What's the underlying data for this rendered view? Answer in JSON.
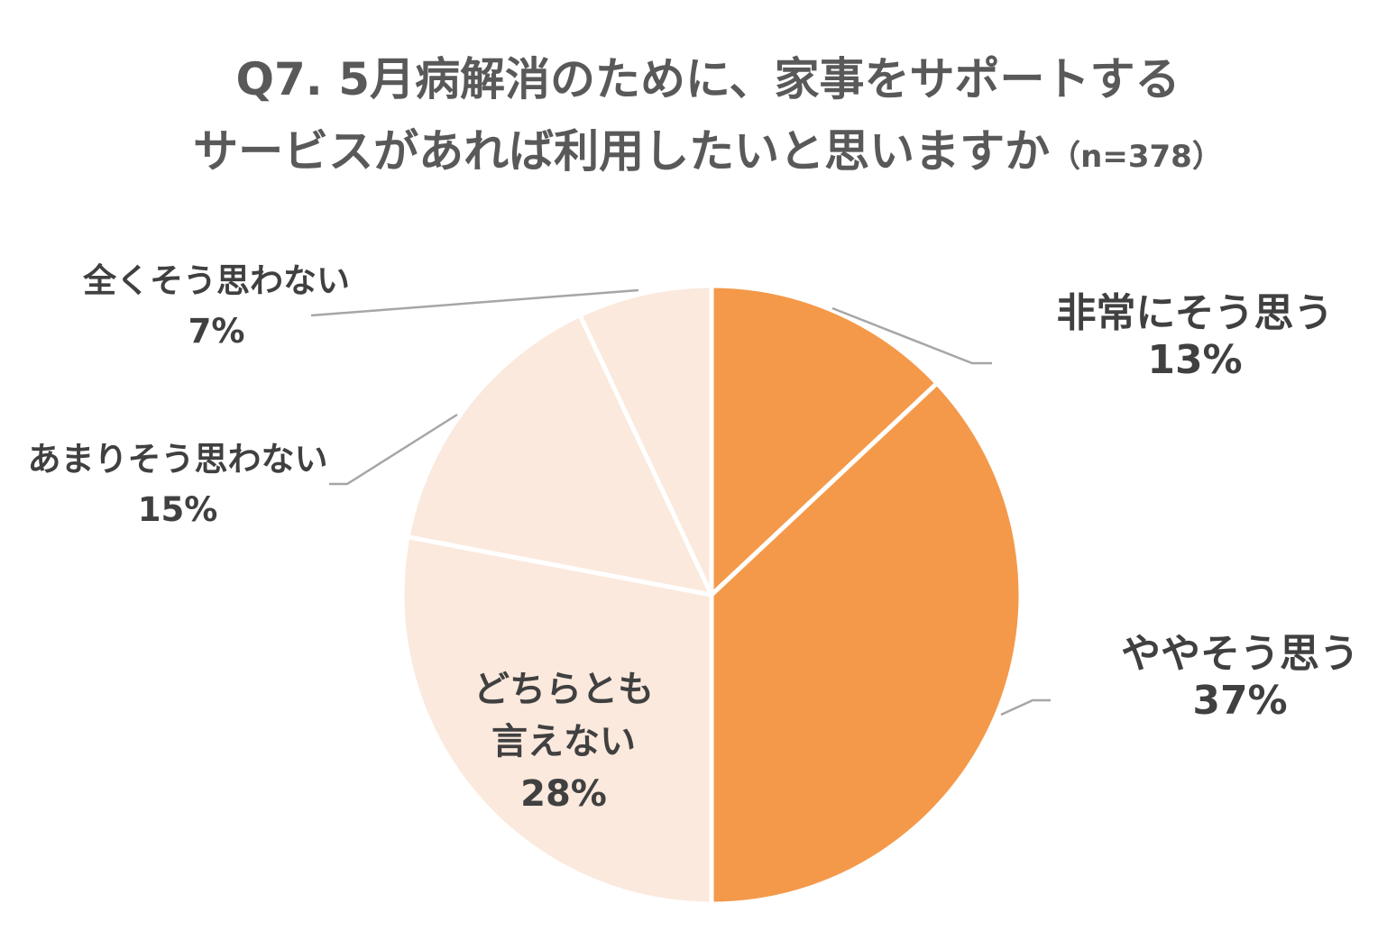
{
  "chart_data": {
    "type": "pie",
    "title_line1": "Q7. 5月病解消のために、家事をサポートする",
    "title_line2": "サービスがあれば利用したいと思いますか",
    "sample_size": "（n=378）",
    "start": "12 o'clock",
    "direction": "clockwise",
    "slices": [
      {
        "label": "非常にそう思う",
        "value": 13,
        "value_label": "13%",
        "color": "#F4994A"
      },
      {
        "label": "ややそう思う",
        "value": 37,
        "value_label": "37%",
        "color": "#F4994A"
      },
      {
        "label_line1": "どちらとも",
        "label_line2": "言えない",
        "value": 28,
        "value_label": "28%",
        "color": "#FBE9DD"
      },
      {
        "label": "あまりそう思わない",
        "value": 15,
        "value_label": "15%",
        "color": "#FBE9DD"
      },
      {
        "label": "全くそう思わない",
        "value": 7,
        "value_label": "7%",
        "color": "#FBE9DD"
      }
    ]
  }
}
